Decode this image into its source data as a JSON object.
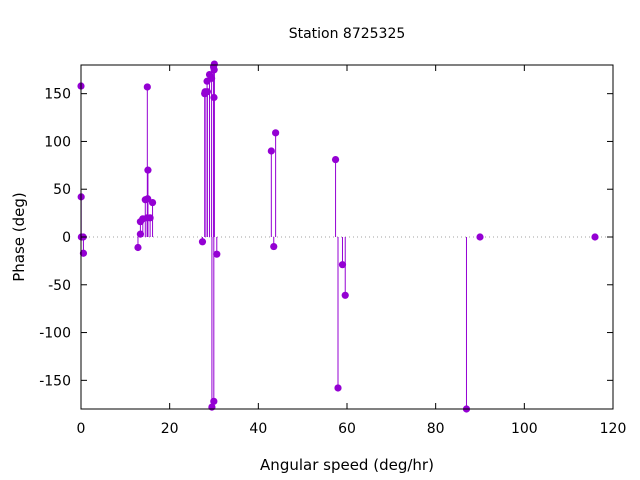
{
  "colors": {
    "series": "#9400d3",
    "axis": "#000000",
    "zero_line": "#a0a0a0"
  },
  "chart_data": {
    "type": "scatter",
    "style": "impulses-with-points",
    "title": "Station 8725325",
    "xlabel": "Angular speed (deg/hr)",
    "ylabel": "Phase (deg)",
    "xlim": [
      0,
      120
    ],
    "ylim": [
      -180,
      180
    ],
    "xticks": [
      0,
      20,
      40,
      60,
      80,
      100,
      120
    ],
    "yticks": [
      -150,
      -100,
      -50,
      0,
      50,
      100,
      150
    ],
    "xtick_labels": [
      "0",
      "20",
      "40",
      "60",
      "80",
      "100",
      "120"
    ],
    "ytick_labels": [
      "-150",
      "-100",
      "-50",
      "0",
      "50",
      "100",
      "150"
    ],
    "grid": false,
    "zero_line": true,
    "series": [
      {
        "points": [
          [
            0.0,
            158
          ],
          [
            0.04,
            42
          ],
          [
            0.08,
            0
          ],
          [
            0.55,
            -17
          ],
          [
            0.5,
            0
          ],
          [
            12.85,
            -11
          ],
          [
            13.4,
            3
          ],
          [
            13.4,
            16
          ],
          [
            13.94,
            19
          ],
          [
            14.5,
            39
          ],
          [
            14.96,
            157
          ],
          [
            14.92,
            20
          ],
          [
            15.04,
            40
          ],
          [
            15.1,
            70
          ],
          [
            15.59,
            20
          ],
          [
            16.14,
            36
          ],
          [
            27.4,
            -5
          ],
          [
            27.9,
            150
          ],
          [
            28.0,
            152
          ],
          [
            28.44,
            163
          ],
          [
            28.51,
            152
          ],
          [
            28.99,
            170
          ],
          [
            29.46,
            166
          ],
          [
            29.53,
            -178
          ],
          [
            29.9,
            178
          ],
          [
            30.0,
            146
          ],
          [
            30.04,
            175
          ],
          [
            29.96,
            -172
          ],
          [
            30.08,
            181
          ],
          [
            30.63,
            -18
          ],
          [
            42.93,
            90
          ],
          [
            43.48,
            -10
          ],
          [
            43.9,
            109
          ],
          [
            57.42,
            81
          ],
          [
            57.97,
            -158
          ],
          [
            58.98,
            -29
          ],
          [
            59.6,
            -61
          ],
          [
            86.95,
            -180
          ],
          [
            90.0,
            0
          ],
          [
            115.94,
            0
          ]
        ]
      }
    ]
  }
}
